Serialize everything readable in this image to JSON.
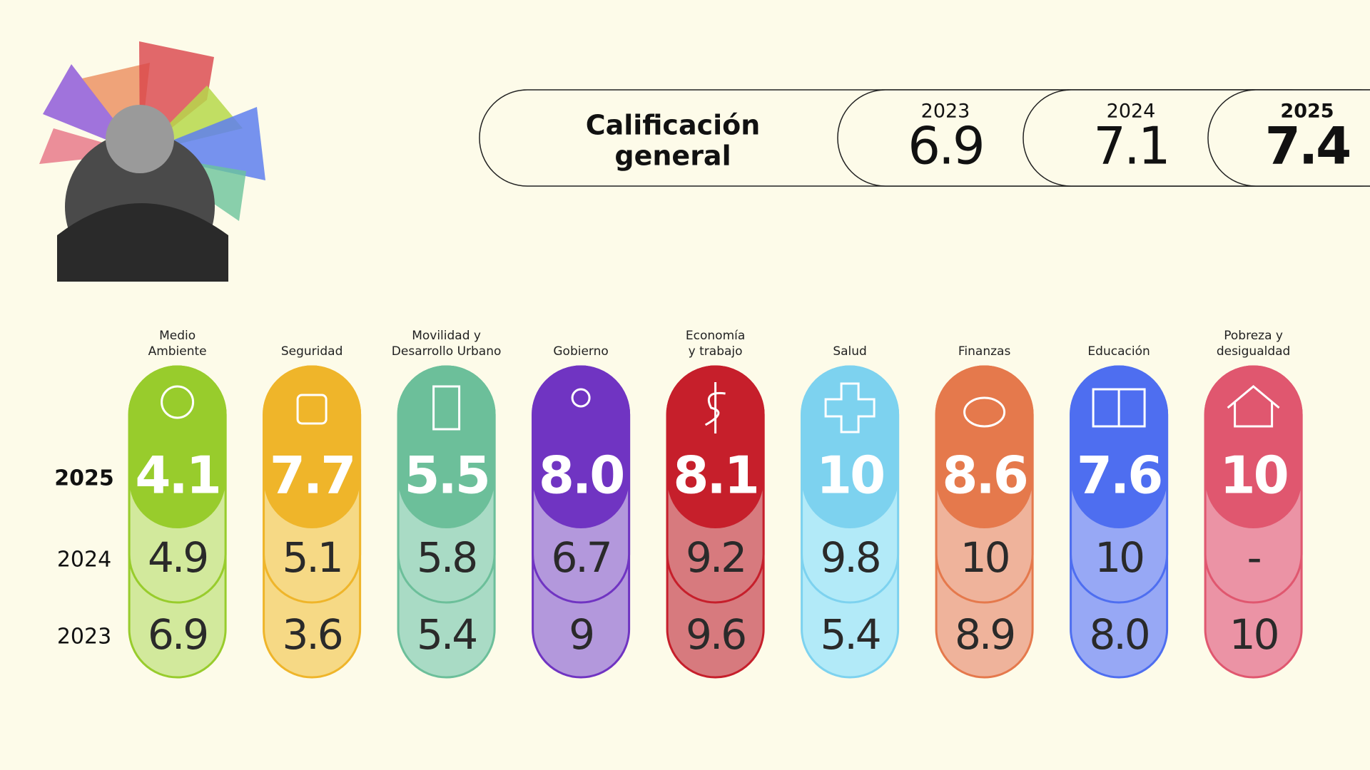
{
  "header": {
    "title": [
      "Calificación",
      "general"
    ],
    "years": [
      {
        "year": "2023",
        "score": "6.9"
      },
      {
        "year": "2024",
        "score": "7.1"
      },
      {
        "year": "2025",
        "score": "7.4"
      }
    ]
  },
  "row_labels": [
    "2025",
    "2024",
    "2023"
  ],
  "categories": [
    {
      "name": [
        "Medio",
        "Ambiente"
      ],
      "scores": [
        "4.1",
        "4.9",
        "6.9"
      ],
      "color": "#98cc2c",
      "light": "#d2e99c"
    },
    {
      "name": [
        "Seguridad"
      ],
      "scores": [
        "7.7",
        "5.1",
        "3.6"
      ],
      "color": "#efb52a",
      "light": "#f6d985"
    },
    {
      "name": [
        "Movilidad y",
        "Desarrollo Urbano"
      ],
      "scores": [
        "5.5",
        "5.8",
        "5.4"
      ],
      "color": "#6cbf9a",
      "light": "#a9dbc5"
    },
    {
      "name": [
        "Gobierno"
      ],
      "scores": [
        "8.0",
        "6.7",
        "9"
      ],
      "color": "#7034c2",
      "light": "#b398dc"
    },
    {
      "name": [
        "Economía",
        "y trabajo"
      ],
      "scores": [
        "8.1",
        "9.2",
        "9.6"
      ],
      "color": "#c61f2b",
      "light": "#d77a7e"
    },
    {
      "name": [
        "Salud"
      ],
      "scores": [
        "10",
        "9.8",
        "5.4"
      ],
      "color": "#7dd2ef",
      "light": "#b2eaf8"
    },
    {
      "name": [
        "Finanzas"
      ],
      "scores": [
        "8.6",
        "10",
        "8.9"
      ],
      "color": "#e5794c",
      "light": "#efb39b"
    },
    {
      "name": [
        "Educación"
      ],
      "scores": [
        "7.6",
        "10",
        "8.0"
      ],
      "color": "#4e6ef0",
      "light": "#97a8f5"
    },
    {
      "name": [
        "Pobreza y",
        "desigualdad"
      ],
      "scores": [
        "10",
        "-",
        "10"
      ],
      "color": "#e0576f",
      "light": "#eb93a5"
    }
  ]
}
